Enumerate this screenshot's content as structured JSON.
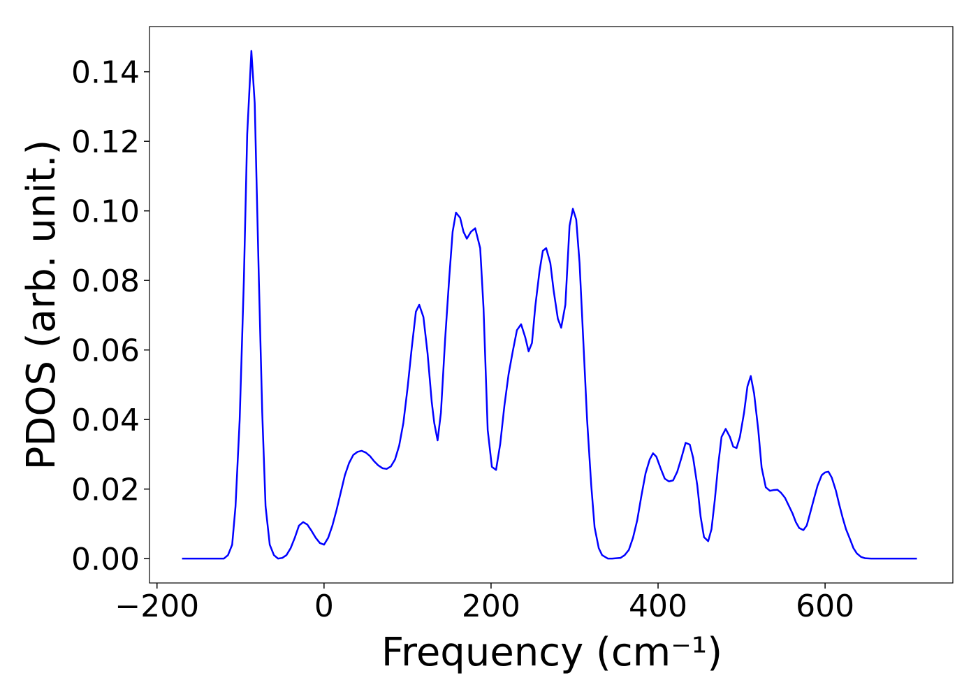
{
  "chart_data": {
    "type": "line",
    "xlabel": "Frequency (cm⁻¹)",
    "ylabel": "PDOS (arb. unit.)",
    "xlim": [
      -209,
      753
    ],
    "ylim": [
      -0.007,
      0.153
    ],
    "xticks": [
      {
        "value": -200,
        "label": "−200"
      },
      0,
      200,
      400,
      600
    ],
    "yticks": [
      {
        "value": 0,
        "label": "0.00"
      },
      {
        "value": 0.02,
        "label": "0.02"
      },
      {
        "value": 0.04,
        "label": "0.04"
      },
      {
        "value": 0.06,
        "label": "0.06"
      },
      {
        "value": 0.08,
        "label": "0.08"
      },
      {
        "value": 0.1,
        "label": "0.10"
      },
      {
        "value": 0.12,
        "label": "0.12"
      },
      {
        "value": 0.14,
        "label": "0.14"
      }
    ],
    "grid": false,
    "x": [
      -170,
      -120,
      -115,
      -110,
      -106,
      -101,
      -96,
      -92,
      -87,
      -83,
      -78,
      -74,
      -70,
      -65,
      -60,
      -55,
      -50,
      -45,
      -40,
      -35,
      -30,
      -25,
      -20,
      -15,
      -10,
      -5,
      0,
      5,
      10,
      15,
      20,
      25,
      30,
      35,
      40,
      45,
      50,
      55,
      60,
      65,
      70,
      75,
      80,
      85,
      90,
      95,
      100,
      105,
      110,
      114,
      119,
      124,
      129,
      132,
      136,
      140,
      145,
      150,
      154,
      158,
      163,
      167,
      171,
      176,
      181,
      187,
      191,
      196,
      201,
      206,
      211,
      216,
      221,
      226,
      231,
      236,
      241,
      245,
      249,
      253,
      258,
      262,
      266,
      271,
      275,
      280,
      284,
      289,
      294,
      298,
      302,
      306,
      311,
      315,
      320,
      324,
      329,
      333,
      340,
      345,
      355,
      360,
      365,
      370,
      375,
      380,
      385,
      390,
      394,
      398,
      403,
      408,
      413,
      418,
      423,
      428,
      433,
      438,
      442,
      447,
      451,
      455,
      460,
      464,
      468,
      472,
      476,
      481,
      486,
      490,
      494,
      498,
      503,
      507,
      511,
      515,
      520,
      524,
      529,
      534,
      538,
      543,
      547,
      552,
      556,
      561,
      565,
      569,
      574,
      578,
      582,
      587,
      591,
      596,
      600,
      604,
      608,
      613,
      617,
      621,
      625,
      630,
      634,
      638,
      643,
      648,
      655,
      710
    ],
    "series": [
      {
        "name": "PDOS",
        "color": "#0000ff",
        "values": [
          0,
          0,
          0.001,
          0.004,
          0.015,
          0.04,
          0.08,
          0.122,
          0.146,
          0.131,
          0.08,
          0.042,
          0.015,
          0.004,
          0.001,
          0,
          0.0002,
          0.001,
          0.003,
          0.006,
          0.0095,
          0.0105,
          0.0098,
          0.008,
          0.006,
          0.0045,
          0.004,
          0.006,
          0.0095,
          0.014,
          0.019,
          0.024,
          0.0275,
          0.0298,
          0.0307,
          0.031,
          0.0305,
          0.0295,
          0.028,
          0.0268,
          0.026,
          0.0258,
          0.0265,
          0.0285,
          0.0325,
          0.039,
          0.049,
          0.0605,
          0.071,
          0.073,
          0.0695,
          0.059,
          0.045,
          0.039,
          0.034,
          0.042,
          0.063,
          0.081,
          0.094,
          0.0995,
          0.098,
          0.094,
          0.092,
          0.094,
          0.095,
          0.0893,
          0.072,
          0.037,
          0.0264,
          0.0255,
          0.033,
          0.044,
          0.053,
          0.0596,
          0.0657,
          0.0674,
          0.0636,
          0.0596,
          0.062,
          0.0726,
          0.0826,
          0.0885,
          0.0893,
          0.085,
          0.077,
          0.069,
          0.0664,
          0.073,
          0.0957,
          0.1006,
          0.0975,
          0.085,
          0.06,
          0.04,
          0.021,
          0.009,
          0.003,
          0.001,
          0,
          0,
          0.0002,
          0.001,
          0.0025,
          0.006,
          0.011,
          0.018,
          0.0245,
          0.0285,
          0.0303,
          0.0293,
          0.026,
          0.023,
          0.0222,
          0.0225,
          0.025,
          0.029,
          0.0333,
          0.0328,
          0.029,
          0.021,
          0.012,
          0.0062,
          0.005,
          0.0085,
          0.017,
          0.027,
          0.035,
          0.0373,
          0.035,
          0.0322,
          0.0318,
          0.035,
          0.042,
          0.0495,
          0.0525,
          0.0475,
          0.037,
          0.0262,
          0.0205,
          0.0195,
          0.0197,
          0.0198,
          0.019,
          0.0175,
          0.0155,
          0.013,
          0.0105,
          0.0088,
          0.0082,
          0.0095,
          0.013,
          0.0175,
          0.021,
          0.024,
          0.0248,
          0.025,
          0.0233,
          0.0195,
          0.0155,
          0.0118,
          0.0085,
          0.0055,
          0.003,
          0.0015,
          0.0005,
          0.0001,
          0,
          0
        ]
      }
    ]
  }
}
